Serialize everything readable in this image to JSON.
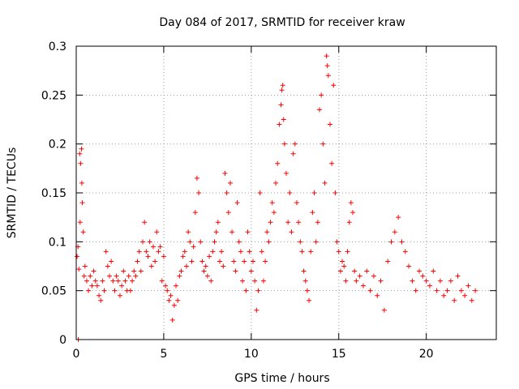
{
  "chart_data": {
    "type": "scatter",
    "title": "Day 084 of 2017, SRMTID for receiver kraw",
    "xlabel": "GPS time / hours",
    "ylabel": "SRMTID / TECUs",
    "xlim": [
      0,
      24
    ],
    "ylim": [
      0,
      0.3
    ],
    "xticks": [
      0,
      5,
      10,
      15,
      20
    ],
    "yticks": [
      0,
      0.05,
      0.1,
      0.15,
      0.2,
      0.25,
      0.3
    ],
    "xtick_labels": [
      "0",
      "5",
      "10",
      "15",
      "20"
    ],
    "ytick_labels": [
      "0",
      "0.05",
      "0.1",
      "0.15",
      "0.2",
      "0.25",
      "0.3"
    ],
    "grid": true,
    "marker": "+",
    "color": "#ff0000",
    "series": [
      {
        "name": "SRMTID",
        "points": [
          [
            0.05,
            0.085
          ],
          [
            0.1,
            0.095
          ],
          [
            0.12,
            0.0
          ],
          [
            0.15,
            0.072
          ],
          [
            0.2,
            0.19
          ],
          [
            0.22,
            0.12
          ],
          [
            0.25,
            0.18
          ],
          [
            0.3,
            0.195
          ],
          [
            0.32,
            0.16
          ],
          [
            0.35,
            0.14
          ],
          [
            0.4,
            0.11
          ],
          [
            0.45,
            0.065
          ],
          [
            0.5,
            0.075
          ],
          [
            0.6,
            0.06
          ],
          [
            0.7,
            0.05
          ],
          [
            0.8,
            0.065
          ],
          [
            0.9,
            0.055
          ],
          [
            1.0,
            0.07
          ],
          [
            1.1,
            0.06
          ],
          [
            1.2,
            0.055
          ],
          [
            1.3,
            0.045
          ],
          [
            1.4,
            0.04
          ],
          [
            1.5,
            0.06
          ],
          [
            1.6,
            0.05
          ],
          [
            1.7,
            0.09
          ],
          [
            1.8,
            0.075
          ],
          [
            1.9,
            0.065
          ],
          [
            2.0,
            0.08
          ],
          [
            2.1,
            0.06
          ],
          [
            2.2,
            0.05
          ],
          [
            2.3,
            0.065
          ],
          [
            2.4,
            0.06
          ],
          [
            2.5,
            0.045
          ],
          [
            2.6,
            0.055
          ],
          [
            2.7,
            0.07
          ],
          [
            2.8,
            0.06
          ],
          [
            2.9,
            0.05
          ],
          [
            3.0,
            0.065
          ],
          [
            3.1,
            0.05
          ],
          [
            3.2,
            0.06
          ],
          [
            3.3,
            0.07
          ],
          [
            3.4,
            0.065
          ],
          [
            3.5,
            0.08
          ],
          [
            3.6,
            0.09
          ],
          [
            3.7,
            0.07
          ],
          [
            3.8,
            0.1
          ],
          [
            3.9,
            0.12
          ],
          [
            4.0,
            0.09
          ],
          [
            4.1,
            0.085
          ],
          [
            4.2,
            0.1
          ],
          [
            4.3,
            0.075
          ],
          [
            4.4,
            0.095
          ],
          [
            4.5,
            0.08
          ],
          [
            4.6,
            0.11
          ],
          [
            4.7,
            0.09
          ],
          [
            4.8,
            0.095
          ],
          [
            4.9,
            0.06
          ],
          [
            5.0,
            0.085
          ],
          [
            5.1,
            0.055
          ],
          [
            5.2,
            0.05
          ],
          [
            5.3,
            0.04
          ],
          [
            5.4,
            0.045
          ],
          [
            5.5,
            0.02
          ],
          [
            5.6,
            0.035
          ],
          [
            5.7,
            0.055
          ],
          [
            5.8,
            0.04
          ],
          [
            5.9,
            0.065
          ],
          [
            6.0,
            0.07
          ],
          [
            6.1,
            0.085
          ],
          [
            6.2,
            0.09
          ],
          [
            6.3,
            0.075
          ],
          [
            6.4,
            0.11
          ],
          [
            6.5,
            0.1
          ],
          [
            6.6,
            0.08
          ],
          [
            6.7,
            0.095
          ],
          [
            6.8,
            0.13
          ],
          [
            6.9,
            0.165
          ],
          [
            7.0,
            0.15
          ],
          [
            7.1,
            0.1
          ],
          [
            7.2,
            0.08
          ],
          [
            7.3,
            0.07
          ],
          [
            7.4,
            0.075
          ],
          [
            7.5,
            0.065
          ],
          [
            7.6,
            0.085
          ],
          [
            7.7,
            0.06
          ],
          [
            7.8,
            0.09
          ],
          [
            7.9,
            0.1
          ],
          [
            8.0,
            0.11
          ],
          [
            8.1,
            0.12
          ],
          [
            8.2,
            0.08
          ],
          [
            8.3,
            0.09
          ],
          [
            8.4,
            0.075
          ],
          [
            8.5,
            0.17
          ],
          [
            8.6,
            0.15
          ],
          [
            8.7,
            0.13
          ],
          [
            8.8,
            0.16
          ],
          [
            8.9,
            0.11
          ],
          [
            9.0,
            0.08
          ],
          [
            9.1,
            0.07
          ],
          [
            9.2,
            0.14
          ],
          [
            9.3,
            0.1
          ],
          [
            9.4,
            0.09
          ],
          [
            9.5,
            0.06
          ],
          [
            9.6,
            0.08
          ],
          [
            9.7,
            0.05
          ],
          [
            9.8,
            0.11
          ],
          [
            9.9,
            0.09
          ],
          [
            10.0,
            0.07
          ],
          [
            10.1,
            0.08
          ],
          [
            10.2,
            0.06
          ],
          [
            10.3,
            0.03
          ],
          [
            10.4,
            0.05
          ],
          [
            10.5,
            0.15
          ],
          [
            10.6,
            0.09
          ],
          [
            10.7,
            0.06
          ],
          [
            10.8,
            0.08
          ],
          [
            10.9,
            0.11
          ],
          [
            11.0,
            0.1
          ],
          [
            11.1,
            0.12
          ],
          [
            11.2,
            0.14
          ],
          [
            11.3,
            0.13
          ],
          [
            11.4,
            0.16
          ],
          [
            11.5,
            0.18
          ],
          [
            11.6,
            0.22
          ],
          [
            11.7,
            0.24
          ],
          [
            11.75,
            0.255
          ],
          [
            11.8,
            0.26
          ],
          [
            11.85,
            0.225
          ],
          [
            11.9,
            0.2
          ],
          [
            12.0,
            0.17
          ],
          [
            12.1,
            0.12
          ],
          [
            12.2,
            0.15
          ],
          [
            12.3,
            0.11
          ],
          [
            12.4,
            0.19
          ],
          [
            12.5,
            0.2
          ],
          [
            12.6,
            0.14
          ],
          [
            12.7,
            0.12
          ],
          [
            12.8,
            0.1
          ],
          [
            12.9,
            0.09
          ],
          [
            13.0,
            0.07
          ],
          [
            13.1,
            0.06
          ],
          [
            13.2,
            0.05
          ],
          [
            13.3,
            0.04
          ],
          [
            13.4,
            0.09
          ],
          [
            13.5,
            0.13
          ],
          [
            13.6,
            0.15
          ],
          [
            13.7,
            0.1
          ],
          [
            13.8,
            0.12
          ],
          [
            13.9,
            0.235
          ],
          [
            14.0,
            0.25
          ],
          [
            14.1,
            0.2
          ],
          [
            14.2,
            0.16
          ],
          [
            14.3,
            0.29
          ],
          [
            14.35,
            0.28
          ],
          [
            14.4,
            0.27
          ],
          [
            14.5,
            0.22
          ],
          [
            14.6,
            0.18
          ],
          [
            14.7,
            0.26
          ],
          [
            14.8,
            0.15
          ],
          [
            14.9,
            0.1
          ],
          [
            15.0,
            0.09
          ],
          [
            15.1,
            0.07
          ],
          [
            15.2,
            0.08
          ],
          [
            15.3,
            0.075
          ],
          [
            15.4,
            0.06
          ],
          [
            15.5,
            0.09
          ],
          [
            15.6,
            0.12
          ],
          [
            15.7,
            0.14
          ],
          [
            15.8,
            0.13
          ],
          [
            15.9,
            0.07
          ],
          [
            16.0,
            0.06
          ],
          [
            16.2,
            0.065
          ],
          [
            16.4,
            0.055
          ],
          [
            16.6,
            0.07
          ],
          [
            16.8,
            0.05
          ],
          [
            17.0,
            0.065
          ],
          [
            17.2,
            0.045
          ],
          [
            17.4,
            0.06
          ],
          [
            17.6,
            0.03
          ],
          [
            17.8,
            0.08
          ],
          [
            18.0,
            0.1
          ],
          [
            18.2,
            0.11
          ],
          [
            18.4,
            0.125
          ],
          [
            18.6,
            0.1
          ],
          [
            18.8,
            0.09
          ],
          [
            19.0,
            0.075
          ],
          [
            19.2,
            0.06
          ],
          [
            19.4,
            0.05
          ],
          [
            19.6,
            0.07
          ],
          [
            19.8,
            0.065
          ],
          [
            20.0,
            0.06
          ],
          [
            20.2,
            0.055
          ],
          [
            20.4,
            0.07
          ],
          [
            20.6,
            0.05
          ],
          [
            20.8,
            0.06
          ],
          [
            21.0,
            0.045
          ],
          [
            21.2,
            0.05
          ],
          [
            21.4,
            0.06
          ],
          [
            21.6,
            0.04
          ],
          [
            21.8,
            0.065
          ],
          [
            22.0,
            0.05
          ],
          [
            22.2,
            0.045
          ],
          [
            22.4,
            0.055
          ],
          [
            22.6,
            0.04
          ],
          [
            22.8,
            0.05
          ]
        ]
      }
    ]
  }
}
